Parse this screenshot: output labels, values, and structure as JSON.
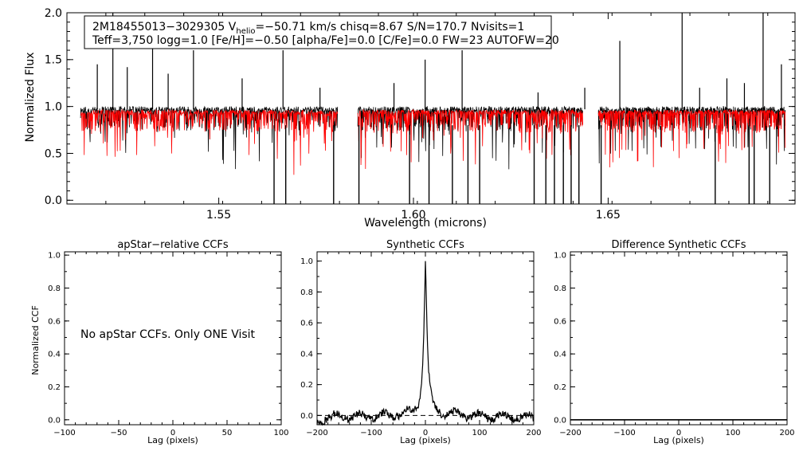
{
  "figure": {
    "main": {
      "info_line1_parts": [
        "2M18455013−3029305  V",
        "helio",
        "=−50.71 km/s  chisq=8.67  S/N=170.7  Nvisits=1"
      ],
      "info_line2": "Teff=3,750 logg=1.0 [Fe/H]=−0.50 [alpha/Fe]=0.0 [C/Fe]=0.0 FW=23 AUTOFW=20"
    },
    "panel1_note": "No apStar CCFs.  Only ONE Visit"
  },
  "colors": {
    "observed": "#000000",
    "model": "#ff0000",
    "axes": "#000000"
  },
  "chart_data": [
    {
      "type": "line",
      "title": "",
      "xlabel": "Wavelength (microns)",
      "ylabel": "Normalized Flux",
      "xlim": [
        1.511,
        1.698
      ],
      "ylim": [
        -0.04,
        2.0
      ],
      "xticks": [
        1.55,
        1.6,
        1.65
      ],
      "xtick_labels": [
        "1.55",
        "1.60",
        "1.65"
      ],
      "yticks": [
        0.0,
        0.5,
        1.0,
        1.5,
        2.0
      ],
      "ytick_labels": [
        "0.0",
        "0.5",
        "1.0",
        "1.5",
        "2.0"
      ],
      "detector_chips": [
        [
          1.5145,
          1.5805
        ],
        [
          1.5857,
          1.6435
        ],
        [
          1.6475,
          1.6955
        ]
      ],
      "series": [
        {
          "name": "observed spectrum",
          "color": "#000000",
          "baseline": 0.97
        },
        {
          "name": "synthetic model",
          "color": "#ff0000",
          "baseline": 0.94
        }
      ],
      "emission_spikes": [
        [
          1.5188,
          1.45
        ],
        [
          1.5228,
          2.0
        ],
        [
          1.5265,
          1.42
        ],
        [
          1.533,
          1.75
        ],
        [
          1.537,
          1.35
        ],
        [
          1.5435,
          1.6
        ],
        [
          1.556,
          1.3
        ],
        [
          1.5665,
          1.6
        ],
        [
          1.576,
          1.2
        ],
        [
          1.595,
          1.25
        ],
        [
          1.603,
          1.5
        ],
        [
          1.6125,
          1.6
        ],
        [
          1.632,
          1.15
        ],
        [
          1.644,
          1.2
        ],
        [
          1.653,
          1.7
        ],
        [
          1.669,
          2.0
        ],
        [
          1.6735,
          1.2
        ],
        [
          1.6805,
          1.3
        ],
        [
          1.685,
          1.25
        ],
        [
          1.6898,
          2.0
        ],
        [
          1.6945,
          1.45
        ]
      ],
      "absorption_drops": [
        1.5642,
        1.5672,
        1.5795,
        1.586,
        1.599,
        1.604,
        1.61,
        1.614,
        1.617,
        1.631,
        1.634,
        1.6362,
        1.6385,
        1.6405,
        1.6425,
        1.6482,
        1.6775,
        1.6862,
        1.6875,
        1.6915
      ]
    },
    {
      "type": "line",
      "title": "apStar−relative CCFs",
      "xlabel": "Lag (pixels)",
      "ylabel": "Normalized CCF",
      "xlim": [
        -100,
        100
      ],
      "ylim": [
        -0.03,
        1.02
      ],
      "xticks": [
        -100,
        -50,
        0,
        50,
        100
      ],
      "xtick_labels": [
        "−100",
        "−50",
        "0",
        "50",
        "100"
      ],
      "yticks": [
        0.0,
        0.2,
        0.4,
        0.6,
        0.8,
        1.0
      ],
      "ytick_labels": [
        "0.0",
        "0.2",
        "0.4",
        "0.6",
        "0.8",
        "1.0"
      ],
      "series": []
    },
    {
      "type": "line",
      "title": "Synthetic CCFs",
      "xlabel": "Lag (pixels)",
      "ylabel": "",
      "xlim": [
        -200,
        200
      ],
      "ylim": [
        -0.06,
        1.06
      ],
      "xticks": [
        -200,
        -100,
        0,
        100,
        200
      ],
      "xtick_labels": [
        "−200",
        "−100",
        "0",
        "100",
        "200"
      ],
      "yticks": [
        0.0,
        0.2,
        0.4,
        0.6,
        0.8,
        1.0
      ],
      "ytick_labels": [
        "0.0",
        "0.2",
        "0.4",
        "0.6",
        "0.8",
        "1.0"
      ],
      "zero_line": {
        "y": 0.0,
        "style": "dashed"
      },
      "series": [
        {
          "name": "CCF",
          "color": "#000000",
          "peak_lag": 0,
          "peak_value": 1.0
        }
      ]
    },
    {
      "type": "line",
      "title": "Difference Synthetic CCFs",
      "xlabel": "Lag (pixels)",
      "ylabel": "",
      "xlim": [
        -200,
        200
      ],
      "ylim": [
        -0.03,
        1.02
      ],
      "xticks": [
        -200,
        -100,
        0,
        100,
        200
      ],
      "xtick_labels": [
        "−200",
        "−100",
        "0",
        "100",
        "200"
      ],
      "yticks": [
        0.0,
        0.2,
        0.4,
        0.6,
        0.8,
        1.0
      ],
      "ytick_labels": [
        "0.0",
        "0.2",
        "0.4",
        "0.6",
        "0.8",
        "1.0"
      ],
      "series": [
        {
          "name": "difference",
          "color": "#000000",
          "value": 0.0
        }
      ]
    }
  ]
}
